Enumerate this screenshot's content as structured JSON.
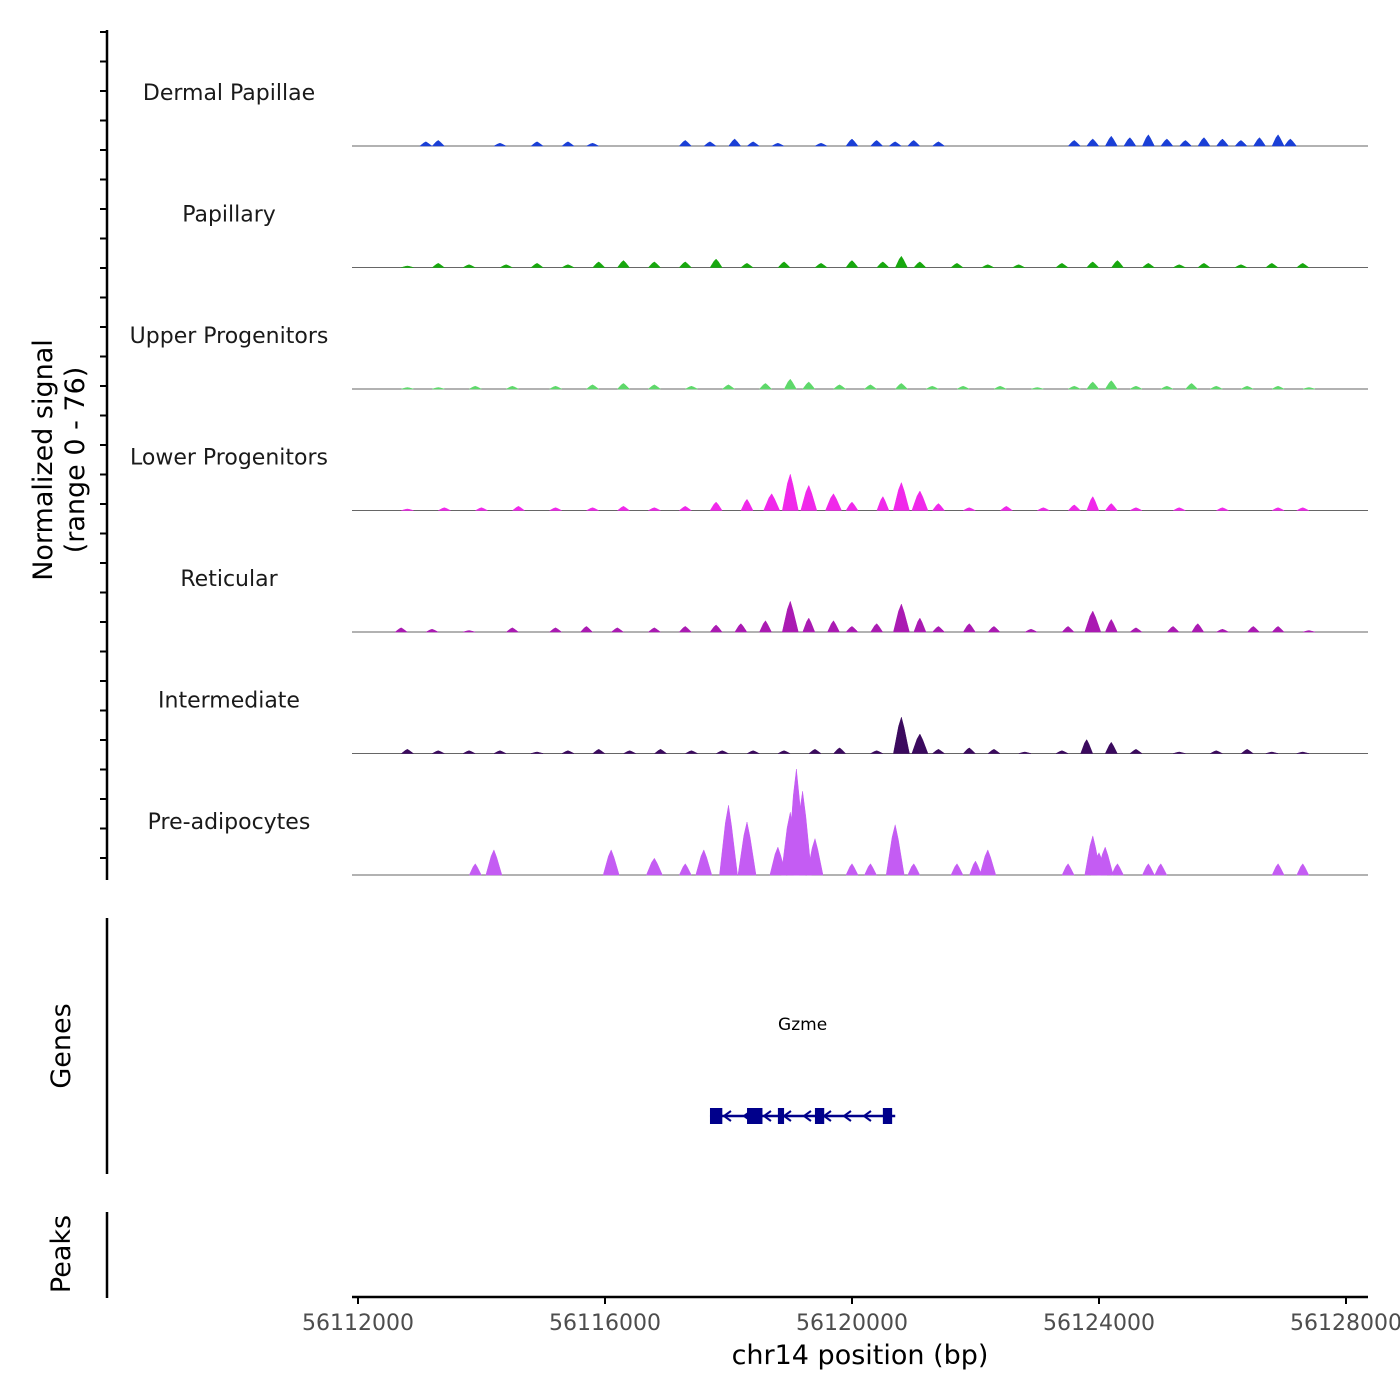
{
  "chart_data": {
    "type": "area",
    "title": "",
    "ylabel": [
      "Normalized signal",
      "(range 0 - 76)"
    ],
    "xlabel": "chr14 position (bp)",
    "xlim": [
      56112000,
      56128000
    ],
    "ylim": [
      0,
      76
    ],
    "x_ticks": [
      56112000,
      56116000,
      56120000,
      56124000,
      56128000
    ],
    "x_tick_labels": [
      "56112000",
      "56116000",
      "56120000",
      "56124000",
      "56128000"
    ],
    "tracks": [
      {
        "name": "Dermal Papillae",
        "color": "#1a3fd6",
        "points": [
          [
            56113100,
            3
          ],
          [
            56113300,
            4
          ],
          [
            56114300,
            2
          ],
          [
            56114900,
            3
          ],
          [
            56115400,
            3
          ],
          [
            56115800,
            2
          ],
          [
            56117300,
            4
          ],
          [
            56117700,
            3
          ],
          [
            56118100,
            5
          ],
          [
            56118400,
            3
          ],
          [
            56118800,
            2
          ],
          [
            56119500,
            2
          ],
          [
            56120000,
            5
          ],
          [
            56120400,
            4
          ],
          [
            56120700,
            3
          ],
          [
            56121000,
            4
          ],
          [
            56121400,
            3
          ],
          [
            56123600,
            4
          ],
          [
            56123900,
            5
          ],
          [
            56124200,
            7
          ],
          [
            56124500,
            6
          ],
          [
            56124800,
            8
          ],
          [
            56125100,
            5
          ],
          [
            56125400,
            4
          ],
          [
            56125700,
            6
          ],
          [
            56126000,
            5
          ],
          [
            56126300,
            4
          ],
          [
            56126600,
            6
          ],
          [
            56126900,
            8
          ],
          [
            56127100,
            5
          ]
        ]
      },
      {
        "name": "Papillary",
        "color": "#17a80e",
        "points": [
          [
            56112800,
            1
          ],
          [
            56113300,
            3
          ],
          [
            56113800,
            2
          ],
          [
            56114400,
            2
          ],
          [
            56114900,
            3
          ],
          [
            56115400,
            2
          ],
          [
            56115900,
            4
          ],
          [
            56116300,
            5
          ],
          [
            56116800,
            4
          ],
          [
            56117300,
            4
          ],
          [
            56117800,
            6
          ],
          [
            56118300,
            3
          ],
          [
            56118900,
            4
          ],
          [
            56119500,
            3
          ],
          [
            56120000,
            5
          ],
          [
            56120500,
            4
          ],
          [
            56120800,
            8
          ],
          [
            56121100,
            4
          ],
          [
            56121700,
            3
          ],
          [
            56122200,
            2
          ],
          [
            56122700,
            2
          ],
          [
            56123400,
            3
          ],
          [
            56123900,
            4
          ],
          [
            56124300,
            5
          ],
          [
            56124800,
            3
          ],
          [
            56125300,
            2
          ],
          [
            56125700,
            3
          ],
          [
            56126300,
            2
          ],
          [
            56126800,
            3
          ],
          [
            56127300,
            3
          ]
        ]
      },
      {
        "name": "Upper Progenitors",
        "color": "#5ed86a",
        "points": [
          [
            56112800,
            1
          ],
          [
            56113300,
            1
          ],
          [
            56113900,
            2
          ],
          [
            56114500,
            2
          ],
          [
            56115200,
            2
          ],
          [
            56115800,
            3
          ],
          [
            56116300,
            4
          ],
          [
            56116800,
            3
          ],
          [
            56117400,
            2
          ],
          [
            56118000,
            3
          ],
          [
            56118600,
            4
          ],
          [
            56119000,
            7
          ],
          [
            56119300,
            5
          ],
          [
            56119800,
            3
          ],
          [
            56120300,
            3
          ],
          [
            56120800,
            4
          ],
          [
            56121300,
            2
          ],
          [
            56121800,
            2
          ],
          [
            56122400,
            2
          ],
          [
            56123000,
            1
          ],
          [
            56123600,
            2
          ],
          [
            56123900,
            5
          ],
          [
            56124200,
            6
          ],
          [
            56124600,
            2
          ],
          [
            56125100,
            2
          ],
          [
            56125500,
            4
          ],
          [
            56125900,
            2
          ],
          [
            56126400,
            2
          ],
          [
            56126900,
            2
          ],
          [
            56127400,
            1
          ]
        ]
      },
      {
        "name": "Lower Progenitors",
        "color": "#f028ea",
        "points": [
          [
            56112800,
            1
          ],
          [
            56113400,
            2
          ],
          [
            56114000,
            2
          ],
          [
            56114600,
            3
          ],
          [
            56115200,
            2
          ],
          [
            56115800,
            2
          ],
          [
            56116300,
            3
          ],
          [
            56116800,
            2
          ],
          [
            56117300,
            3
          ],
          [
            56117800,
            6
          ],
          [
            56118300,
            8
          ],
          [
            56118700,
            12
          ],
          [
            56119000,
            26
          ],
          [
            56119300,
            18
          ],
          [
            56119700,
            12
          ],
          [
            56120000,
            6
          ],
          [
            56120500,
            10
          ],
          [
            56120800,
            20
          ],
          [
            56121100,
            14
          ],
          [
            56121400,
            5
          ],
          [
            56121900,
            2
          ],
          [
            56122500,
            3
          ],
          [
            56123100,
            2
          ],
          [
            56123600,
            4
          ],
          [
            56123900,
            10
          ],
          [
            56124200,
            5
          ],
          [
            56124600,
            2
          ],
          [
            56125300,
            2
          ],
          [
            56126000,
            2
          ],
          [
            56126900,
            2
          ],
          [
            56127300,
            2
          ]
        ]
      },
      {
        "name": "Reticular",
        "color": "#aa1ab2",
        "points": [
          [
            56112700,
            3
          ],
          [
            56113200,
            2
          ],
          [
            56113800,
            1
          ],
          [
            56114500,
            3
          ],
          [
            56115200,
            3
          ],
          [
            56115700,
            4
          ],
          [
            56116200,
            3
          ],
          [
            56116800,
            3
          ],
          [
            56117300,
            4
          ],
          [
            56117800,
            5
          ],
          [
            56118200,
            6
          ],
          [
            56118600,
            8
          ],
          [
            56119000,
            22
          ],
          [
            56119300,
            10
          ],
          [
            56119700,
            8
          ],
          [
            56120000,
            4
          ],
          [
            56120400,
            6
          ],
          [
            56120800,
            20
          ],
          [
            56121100,
            10
          ],
          [
            56121400,
            4
          ],
          [
            56121900,
            6
          ],
          [
            56122300,
            4
          ],
          [
            56122900,
            2
          ],
          [
            56123500,
            4
          ],
          [
            56123900,
            15
          ],
          [
            56124200,
            9
          ],
          [
            56124600,
            3
          ],
          [
            56125200,
            4
          ],
          [
            56125600,
            6
          ],
          [
            56126000,
            2
          ],
          [
            56126500,
            4
          ],
          [
            56126900,
            4
          ],
          [
            56127400,
            1
          ]
        ]
      },
      {
        "name": "Intermediate",
        "color": "#3b0a5e",
        "points": [
          [
            56112800,
            3
          ],
          [
            56113300,
            2
          ],
          [
            56113800,
            2
          ],
          [
            56114300,
            2
          ],
          [
            56114900,
            1
          ],
          [
            56115400,
            2
          ],
          [
            56115900,
            3
          ],
          [
            56116400,
            2
          ],
          [
            56116900,
            3
          ],
          [
            56117400,
            2
          ],
          [
            56117900,
            2
          ],
          [
            56118400,
            2
          ],
          [
            56118900,
            2
          ],
          [
            56119400,
            3
          ],
          [
            56119800,
            4
          ],
          [
            56120400,
            2
          ],
          [
            56120800,
            26
          ],
          [
            56121100,
            14
          ],
          [
            56121400,
            3
          ],
          [
            56121900,
            4
          ],
          [
            56122300,
            3
          ],
          [
            56122800,
            1
          ],
          [
            56123400,
            2
          ],
          [
            56123800,
            10
          ],
          [
            56124200,
            8
          ],
          [
            56124600,
            3
          ],
          [
            56125300,
            1
          ],
          [
            56125900,
            2
          ],
          [
            56126400,
            3
          ],
          [
            56126800,
            1
          ],
          [
            56127300,
            1
          ]
        ]
      },
      {
        "name": "Pre-adipocytes",
        "color": "#c45cf3",
        "points": [
          [
            56113900,
            8
          ],
          [
            56114200,
            18
          ],
          [
            56116100,
            18
          ],
          [
            56116800,
            12
          ],
          [
            56117300,
            8
          ],
          [
            56117600,
            18
          ],
          [
            56118000,
            50
          ],
          [
            56118300,
            38
          ],
          [
            56118800,
            20
          ],
          [
            56119000,
            45
          ],
          [
            56119100,
            76
          ],
          [
            56119200,
            60
          ],
          [
            56119400,
            26
          ],
          [
            56120000,
            8
          ],
          [
            56120300,
            8
          ],
          [
            56120700,
            36
          ],
          [
            56121000,
            8
          ],
          [
            56121700,
            8
          ],
          [
            56122000,
            10
          ],
          [
            56122200,
            18
          ],
          [
            56123500,
            8
          ],
          [
            56123900,
            28
          ],
          [
            56124000,
            16
          ],
          [
            56124100,
            20
          ],
          [
            56124300,
            8
          ],
          [
            56124800,
            8
          ],
          [
            56125000,
            8
          ],
          [
            56126900,
            8
          ],
          [
            56127300,
            8
          ]
        ]
      }
    ],
    "genes": {
      "panel_label": "Genes",
      "items": [
        {
          "name": "Gzme",
          "start": 56117700,
          "end": 56120700,
          "strand": "-",
          "exons": [
            [
              56117700,
              56117900
            ],
            [
              56118300,
              56118550
            ],
            [
              56118800,
              56118900
            ],
            [
              56119400,
              56119550
            ],
            [
              56120500,
              56120650
            ]
          ]
        }
      ]
    },
    "peaks": {
      "panel_label": "Peaks",
      "items": []
    }
  }
}
